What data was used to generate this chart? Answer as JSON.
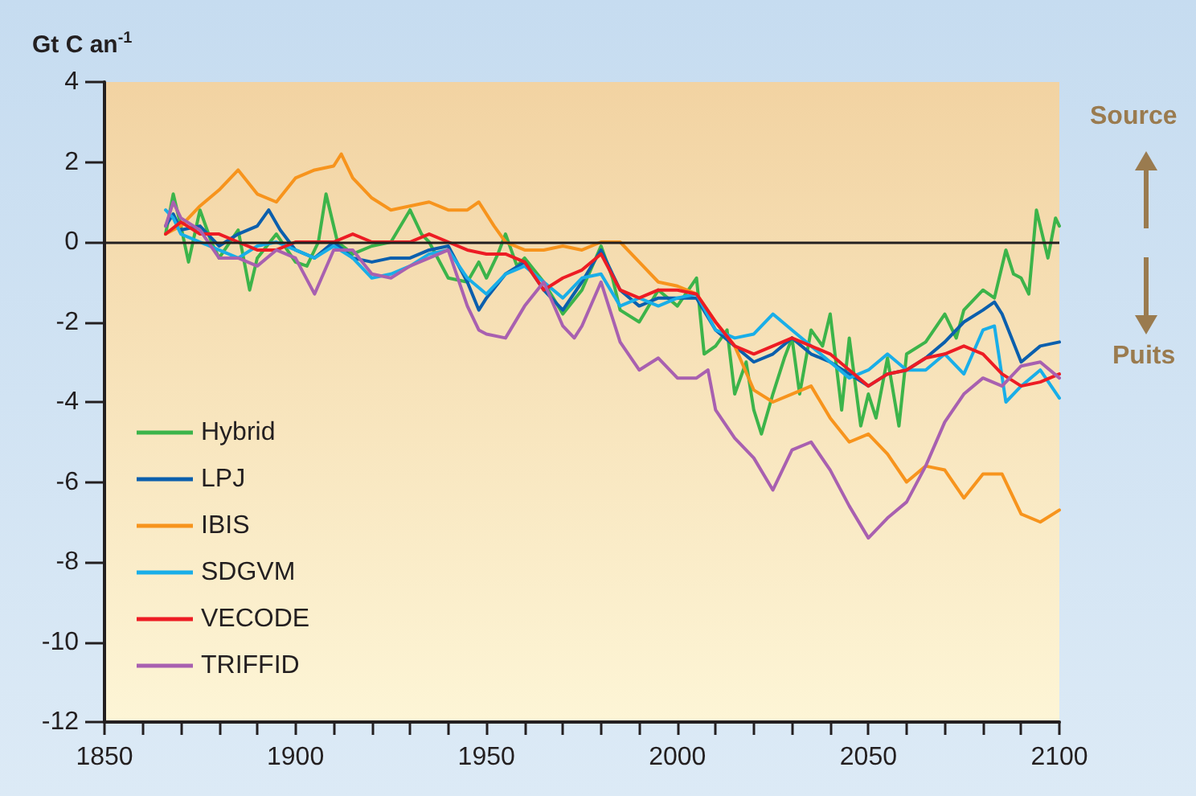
{
  "chart_data": {
    "type": "line",
    "ylabel": "Gt C an$^{-1}$",
    "xlim": [
      1850,
      2100
    ],
    "ylim": [
      -12,
      4
    ],
    "xticks": [
      1850,
      {
        "value": 1860,
        "label": null
      },
      {
        "value": 1870,
        "label": null
      },
      {
        "value": 1880,
        "label": null
      },
      {
        "value": 1890,
        "label": null
      },
      1900,
      {
        "value": 1910,
        "label": null
      },
      {
        "value": 1920,
        "label": null
      },
      {
        "value": 1930,
        "label": null
      },
      {
        "value": 1940,
        "label": null
      },
      1950,
      {
        "value": 1960,
        "label": null
      },
      {
        "value": 1970,
        "label": null
      },
      {
        "value": 1980,
        "label": null
      },
      {
        "value": 1990,
        "label": null
      },
      2000,
      {
        "value": 2010,
        "label": null
      },
      {
        "value": 2020,
        "label": null
      },
      {
        "value": 2030,
        "label": null
      },
      {
        "value": 2040,
        "label": null
      },
      2050,
      {
        "value": 2060,
        "label": null
      },
      {
        "value": 2070,
        "label": null
      },
      {
        "value": 2080,
        "label": null
      },
      {
        "value": 2090,
        "label": null
      },
      2100
    ],
    "yticks": [
      -12,
      -10,
      -8,
      -6,
      -4,
      -2,
      0,
      2,
      4
    ],
    "grid": false,
    "legend": "bottom left",
    "marker": "none",
    "line_style": "solid",
    "ref_lines": [
      {
        "axis": "y",
        "value": 0,
        "label": null,
        "color": "#231f20"
      }
    ],
    "annotations": [
      "Source",
      "Puits"
    ],
    "series": [
      {
        "name": "Hybrid",
        "color": "#3cb44a",
        "x": [
          1866,
          1868,
          1870,
          1872,
          1875,
          1878,
          1880,
          1885,
          1888,
          1890,
          1895,
          1900,
          1903,
          1906,
          1908,
          1911,
          1915,
          1920,
          1925,
          1930,
          1933,
          1935,
          1940,
          1945,
          1948,
          1950,
          1953,
          1955,
          1958,
          1960,
          1965,
          1970,
          1975,
          1980,
          1983,
          1985,
          1990,
          1995,
          2000,
          2005,
          2007,
          2010,
          2013,
          2015,
          2018,
          2020,
          2022,
          2025,
          2028,
          2030,
          2032,
          2035,
          2038,
          2040,
          2043,
          2045,
          2048,
          2050,
          2052,
          2055,
          2058,
          2060,
          2065,
          2070,
          2073,
          2075,
          2080,
          2083,
          2086,
          2088,
          2090,
          2092,
          2094,
          2097,
          2099,
          2100
        ],
        "values": [
          0.2,
          1.2,
          0.4,
          -0.5,
          0.8,
          0.0,
          -0.4,
          0.3,
          -1.2,
          -0.4,
          0.2,
          -0.5,
          -0.6,
          0.0,
          1.2,
          0.0,
          -0.3,
          -0.1,
          0.0,
          0.8,
          0.2,
          0.0,
          -0.9,
          -1.0,
          -0.5,
          -0.9,
          -0.3,
          0.2,
          -0.6,
          -0.4,
          -1.0,
          -1.8,
          -1.2,
          -0.1,
          -0.9,
          -1.7,
          -2.0,
          -1.2,
          -1.6,
          -0.9,
          -2.8,
          -2.6,
          -2.2,
          -3.8,
          -3.0,
          -4.2,
          -4.8,
          -3.8,
          -2.9,
          -2.4,
          -3.8,
          -2.2,
          -2.6,
          -1.8,
          -4.2,
          -2.4,
          -4.6,
          -3.8,
          -4.4,
          -2.9,
          -4.6,
          -2.8,
          -2.5,
          -1.8,
          -2.4,
          -1.7,
          -1.2,
          -1.4,
          -0.2,
          -0.8,
          -0.9,
          -1.3,
          0.8,
          -0.4,
          0.6,
          0.4
        ]
      },
      {
        "name": "LPJ",
        "color": "#0b5fad",
        "x": [
          1866,
          1868,
          1870,
          1875,
          1880,
          1885,
          1890,
          1893,
          1896,
          1900,
          1905,
          1910,
          1915,
          1920,
          1925,
          1930,
          1935,
          1940,
          1945,
          1948,
          1950,
          1955,
          1960,
          1965,
          1970,
          1975,
          1980,
          1985,
          1990,
          1995,
          2000,
          2005,
          2010,
          2015,
          2020,
          2025,
          2030,
          2035,
          2040,
          2045,
          2050,
          2055,
          2060,
          2065,
          2070,
          2075,
          2080,
          2083,
          2085,
          2090,
          2095,
          2100
        ],
        "values": [
          0.4,
          0.7,
          0.3,
          0.4,
          -0.1,
          0.2,
          0.4,
          0.8,
          0.3,
          -0.2,
          -0.4,
          0.0,
          -0.4,
          -0.5,
          -0.4,
          -0.4,
          -0.2,
          -0.1,
          -1.0,
          -1.7,
          -1.4,
          -0.8,
          -0.5,
          -1.2,
          -1.7,
          -1.0,
          -0.2,
          -1.2,
          -1.6,
          -1.4,
          -1.4,
          -1.4,
          -2.2,
          -2.6,
          -3.0,
          -2.8,
          -2.4,
          -2.8,
          -3.0,
          -3.3,
          -3.6,
          -3.3,
          -3.2,
          -2.9,
          -2.5,
          -2.0,
          -1.7,
          -1.5,
          -1.8,
          -3.0,
          -2.6,
          -2.5
        ]
      },
      {
        "name": "IBIS",
        "color": "#f7941d",
        "x": [
          1866,
          1870,
          1875,
          1880,
          1885,
          1890,
          1895,
          1900,
          1905,
          1910,
          1912,
          1915,
          1920,
          1925,
          1930,
          1935,
          1940,
          1945,
          1948,
          1952,
          1955,
          1960,
          1965,
          1970,
          1975,
          1980,
          1985,
          1990,
          1995,
          2000,
          2005,
          2010,
          2015,
          2020,
          2025,
          2030,
          2035,
          2040,
          2045,
          2050,
          2055,
          2060,
          2065,
          2070,
          2075,
          2080,
          2085,
          2090,
          2095,
          2100
        ],
        "values": [
          0.2,
          0.4,
          0.9,
          1.3,
          1.8,
          1.2,
          1.0,
          1.6,
          1.8,
          1.9,
          2.2,
          1.6,
          1.1,
          0.8,
          0.9,
          1.0,
          0.8,
          0.8,
          1.0,
          0.4,
          0.0,
          -0.2,
          -0.2,
          -0.1,
          -0.2,
          0.0,
          0.0,
          -0.5,
          -1.0,
          -1.1,
          -1.3,
          -2.0,
          -2.6,
          -3.7,
          -4.0,
          -3.8,
          -3.6,
          -4.4,
          -5.0,
          -4.8,
          -5.3,
          -6.0,
          -5.6,
          -5.7,
          -6.4,
          -5.8,
          -5.8,
          -6.8,
          -7.0,
          -6.7
        ]
      },
      {
        "name": "SDGVM",
        "color": "#19aee8",
        "x": [
          1866,
          1868,
          1870,
          1875,
          1880,
          1885,
          1890,
          1895,
          1900,
          1905,
          1910,
          1915,
          1920,
          1925,
          1930,
          1935,
          1940,
          1945,
          1950,
          1955,
          1960,
          1965,
          1970,
          1975,
          1980,
          1985,
          1990,
          1995,
          2000,
          2005,
          2010,
          2015,
          2020,
          2025,
          2030,
          2035,
          2040,
          2045,
          2050,
          2055,
          2060,
          2065,
          2070,
          2075,
          2080,
          2083,
          2086,
          2090,
          2095,
          2100
        ],
        "values": [
          0.8,
          0.6,
          0.2,
          0.0,
          -0.2,
          -0.4,
          -0.1,
          0.0,
          -0.2,
          -0.4,
          -0.1,
          -0.4,
          -0.9,
          -0.8,
          -0.6,
          -0.3,
          -0.2,
          -0.9,
          -1.3,
          -0.8,
          -0.6,
          -1.0,
          -1.4,
          -0.9,
          -0.8,
          -1.6,
          -1.4,
          -1.6,
          -1.4,
          -1.3,
          -2.2,
          -2.4,
          -2.3,
          -1.8,
          -2.2,
          -2.6,
          -3.0,
          -3.4,
          -3.2,
          -2.8,
          -3.2,
          -3.2,
          -2.8,
          -3.3,
          -2.2,
          -2.1,
          -4.0,
          -3.6,
          -3.2,
          -3.9
        ]
      },
      {
        "name": "VECODE",
        "color": "#ed1c24",
        "x": [
          1866,
          1870,
          1875,
          1880,
          1885,
          1890,
          1895,
          1900,
          1905,
          1910,
          1915,
          1920,
          1925,
          1930,
          1935,
          1940,
          1945,
          1950,
          1955,
          1960,
          1965,
          1970,
          1975,
          1980,
          1985,
          1990,
          1995,
          2000,
          2005,
          2010,
          2015,
          2020,
          2025,
          2030,
          2035,
          2040,
          2045,
          2050,
          2055,
          2060,
          2065,
          2070,
          2075,
          2080,
          2085,
          2090,
          2095,
          2100
        ],
        "values": [
          0.2,
          0.5,
          0.2,
          0.2,
          0.0,
          -0.2,
          -0.2,
          0.0,
          0.0,
          0.0,
          0.2,
          0.0,
          0.0,
          0.0,
          0.2,
          0.0,
          -0.2,
          -0.3,
          -0.3,
          -0.5,
          -1.2,
          -0.9,
          -0.7,
          -0.3,
          -1.2,
          -1.4,
          -1.2,
          -1.2,
          -1.3,
          -2.0,
          -2.6,
          -2.8,
          -2.6,
          -2.4,
          -2.6,
          -2.8,
          -3.2,
          -3.6,
          -3.3,
          -3.2,
          -2.9,
          -2.8,
          -2.6,
          -2.8,
          -3.3,
          -3.6,
          -3.5,
          -3.3
        ]
      },
      {
        "name": "TRIFFID",
        "color": "#a860b0",
        "x": [
          1866,
          1868,
          1870,
          1875,
          1880,
          1885,
          1890,
          1895,
          1900,
          1905,
          1910,
          1915,
          1920,
          1925,
          1930,
          1935,
          1940,
          1945,
          1948,
          1950,
          1955,
          1960,
          1965,
          1970,
          1973,
          1975,
          1980,
          1982,
          1985,
          1990,
          1995,
          2000,
          2005,
          2008,
          2010,
          2015,
          2020,
          2025,
          2030,
          2035,
          2040,
          2045,
          2050,
          2055,
          2060,
          2065,
          2070,
          2075,
          2080,
          2085,
          2090,
          2095,
          2100
        ],
        "values": [
          0.4,
          1.0,
          0.6,
          0.3,
          -0.4,
          -0.4,
          -0.6,
          -0.2,
          -0.4,
          -1.3,
          -0.2,
          -0.2,
          -0.8,
          -0.9,
          -0.6,
          -0.4,
          -0.2,
          -1.6,
          -2.2,
          -2.3,
          -2.4,
          -1.6,
          -1.0,
          -2.1,
          -2.4,
          -2.1,
          -1.0,
          -1.6,
          -2.5,
          -3.2,
          -2.9,
          -3.4,
          -3.4,
          -3.2,
          -4.2,
          -4.9,
          -5.4,
          -6.2,
          -5.2,
          -5.0,
          -5.7,
          -6.6,
          -7.4,
          -6.9,
          -6.5,
          -5.6,
          -4.5,
          -3.8,
          -3.4,
          -3.6,
          -3.1,
          -3.0,
          -3.4
        ]
      }
    ]
  }
}
